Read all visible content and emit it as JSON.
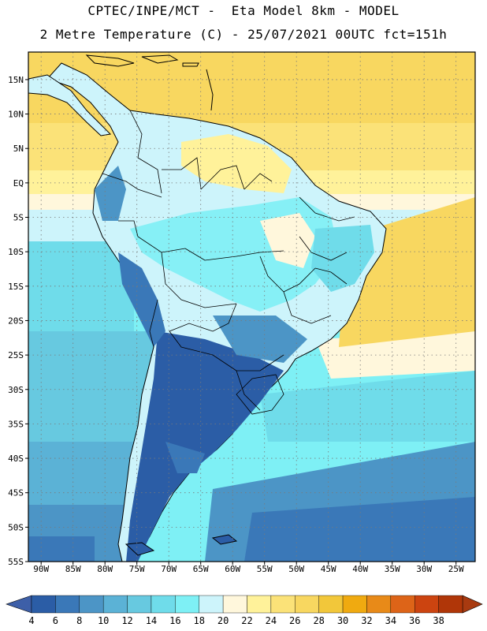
{
  "header": {
    "line1": "CPTEC/INPE/MCT -  Eta Model 8km - MODEL",
    "line2": "2 Metre Temperature (C) - 25/07/2021 00UTC fct=151h"
  },
  "map": {
    "lon_range": [
      -92,
      -22
    ],
    "lat_range": [
      -55,
      19
    ],
    "lon_ticks": [
      {
        "v": -90,
        "label": "90W"
      },
      {
        "v": -85,
        "label": "85W"
      },
      {
        "v": -80,
        "label": "80W"
      },
      {
        "v": -75,
        "label": "75W"
      },
      {
        "v": -70,
        "label": "70W"
      },
      {
        "v": -65,
        "label": "65W"
      },
      {
        "v": -60,
        "label": "60W"
      },
      {
        "v": -55,
        "label": "55W"
      },
      {
        "v": -50,
        "label": "50W"
      },
      {
        "v": -45,
        "label": "45W"
      },
      {
        "v": -40,
        "label": "40W"
      },
      {
        "v": -35,
        "label": "35W"
      },
      {
        "v": -30,
        "label": "30W"
      },
      {
        "v": -25,
        "label": "25W"
      }
    ],
    "lat_ticks": [
      {
        "v": 15,
        "label": "15N"
      },
      {
        "v": 10,
        "label": "10N"
      },
      {
        "v": 5,
        "label": "5N"
      },
      {
        "v": 0,
        "label": "EQ"
      },
      {
        "v": -5,
        "label": "5S"
      },
      {
        "v": -10,
        "label": "10S"
      },
      {
        "v": -15,
        "label": "15S"
      },
      {
        "v": -20,
        "label": "20S"
      },
      {
        "v": -25,
        "label": "25S"
      },
      {
        "v": -30,
        "label": "30S"
      },
      {
        "v": -35,
        "label": "35S"
      },
      {
        "v": -40,
        "label": "40S"
      },
      {
        "v": -45,
        "label": "45S"
      },
      {
        "v": -50,
        "label": "50S"
      },
      {
        "v": -55,
        "label": "55S"
      }
    ],
    "grid": "dotted"
  },
  "colorbar": {
    "labels": [
      "4",
      "6",
      "8",
      "10",
      "12",
      "14",
      "16",
      "18",
      "20",
      "22",
      "24",
      "26",
      "28",
      "30",
      "32",
      "34",
      "36",
      "38"
    ],
    "colors": [
      "#2b5da6",
      "#3a78b8",
      "#4c95c6",
      "#5bb2d6",
      "#67c9e0",
      "#6fdcea",
      "#7ef0f5",
      "#cdf4fb",
      "#fff7dc",
      "#fff29a",
      "#fbe278",
      "#f8d760",
      "#f2c73a",
      "#f0aa10",
      "#e88a18",
      "#dd6418",
      "#cc4410",
      "#b03608"
    ],
    "end_low": "#3d5fa8",
    "end_high": "#a83a10"
  }
}
